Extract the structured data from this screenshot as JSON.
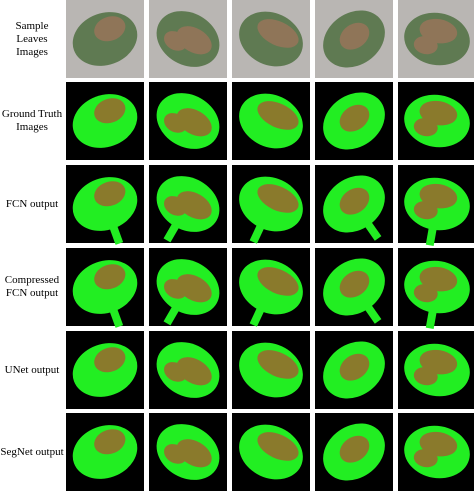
{
  "figure": {
    "rows": [
      {
        "label": "Sample Leaves Images"
      },
      {
        "label": "Ground Truth Images"
      },
      {
        "label": "FCN output"
      },
      {
        "label": "Compressed FCN output"
      },
      {
        "label": "UNet output"
      },
      {
        "label": "SegNet output"
      }
    ]
  }
}
